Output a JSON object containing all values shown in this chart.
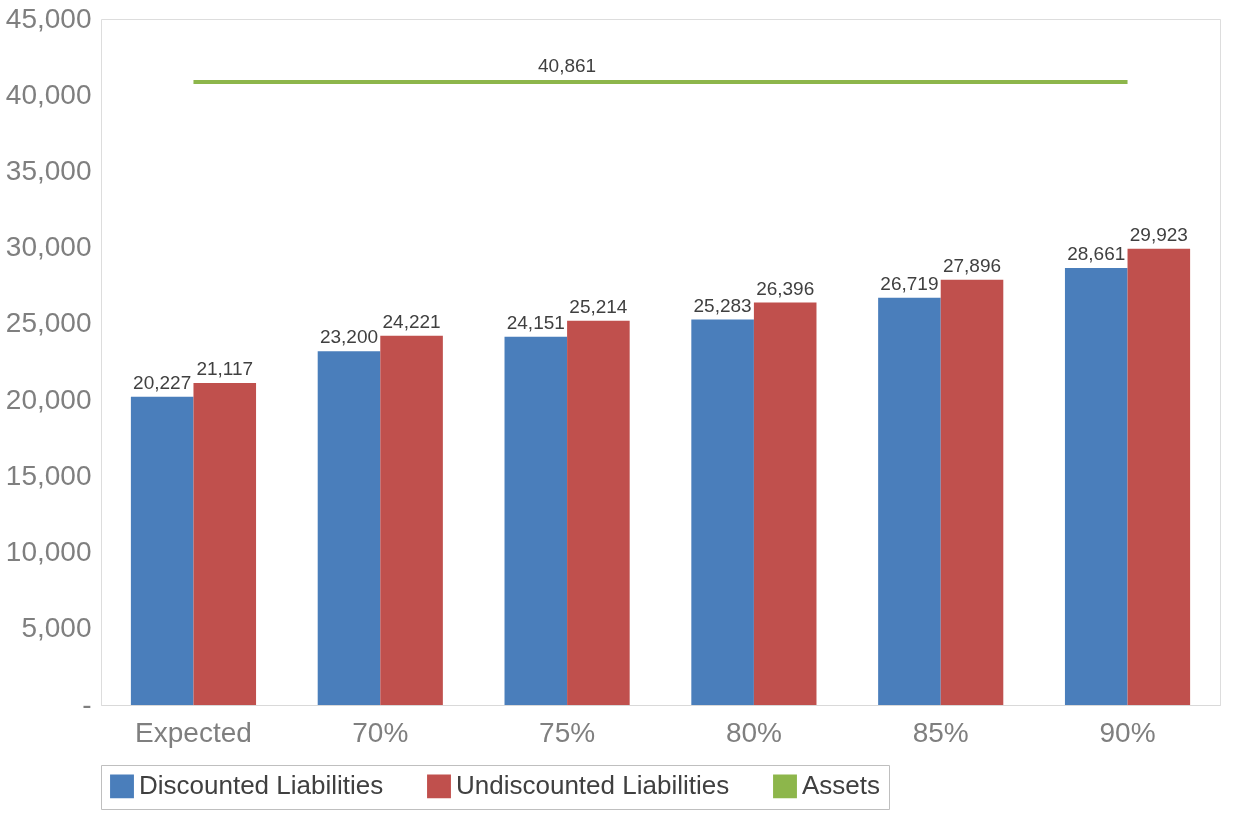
{
  "chart_data": {
    "type": "bar",
    "categories": [
      "Expected",
      "70%",
      "75%",
      "80%",
      "85%",
      "90%"
    ],
    "series": [
      {
        "name": "Discounted Liabilities",
        "color": "#4a7ebb",
        "values": [
          20227,
          23200,
          24151,
          25283,
          26719,
          28661
        ],
        "value_labels": [
          "20,227",
          "23,200",
          "24,151",
          "25,283",
          "26,719",
          "28,661"
        ]
      },
      {
        "name": "Undiscounted Liabilities",
        "color": "#c0504d",
        "values": [
          21117,
          24221,
          25214,
          26396,
          27896,
          29923
        ],
        "value_labels": [
          "21,117",
          "24,221",
          "25,214",
          "26,396",
          "27,896",
          "29,923"
        ]
      },
      {
        "name": "Assets",
        "type": "line",
        "color": "#8db64b",
        "values": [
          40861,
          40861,
          40861,
          40861,
          40861,
          40861
        ],
        "value_labels": [
          null,
          null,
          "40,861",
          null,
          null,
          null
        ]
      }
    ],
    "ylim": [
      0,
      45000
    ],
    "yticks": [
      {
        "value": 0,
        "label": "-"
      },
      {
        "value": 5000,
        "label": "5,000"
      },
      {
        "value": 10000,
        "label": "10,000"
      },
      {
        "value": 15000,
        "label": "15,000"
      },
      {
        "value": 20000,
        "label": "20,000"
      },
      {
        "value": 25000,
        "label": "25,000"
      },
      {
        "value": 30000,
        "label": "30,000"
      },
      {
        "value": 35000,
        "label": "35,000"
      },
      {
        "value": 40000,
        "label": "40,000"
      },
      {
        "value": 45000,
        "label": "45,000"
      }
    ],
    "grid": false,
    "legend": "bottom"
  }
}
